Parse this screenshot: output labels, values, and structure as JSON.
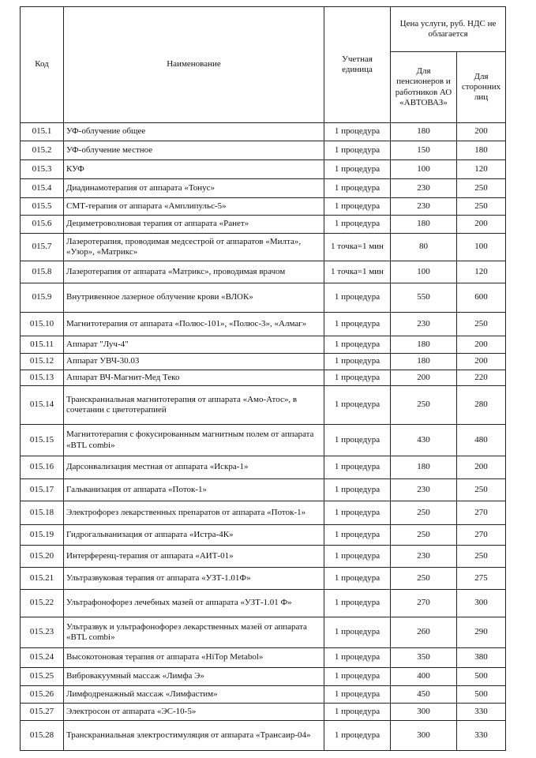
{
  "header": {
    "code": "Код",
    "name": "Наименование",
    "unit": "Учетная единица",
    "price": "Цена услуги, руб. НДС не облагается",
    "price_pensioners": "Для пенсионеров и работников АО «АВТОВАЗ»",
    "price_others": "Для сторонних лиц"
  },
  "table": {
    "rows": [
      [
        "015.1",
        "УФ-облучение общее",
        "1 процедура",
        180,
        200
      ],
      [
        "015.2",
        "УФ-облучение местное",
        "1 процедура",
        150,
        180
      ],
      [
        "015.3",
        "КУФ",
        "1 процедура",
        100,
        120
      ],
      [
        "015.4",
        "Диадинамотерапия от аппарата «Тонус»",
        "1 процедура",
        230,
        250
      ],
      [
        "015.5",
        "СМТ-терапия от аппарата «Амплипульс-5»",
        "1 процедура",
        230,
        250
      ],
      [
        "015.6",
        "Дециметроволновая терапия от аппарата «Ранет»",
        "1 процедура",
        180,
        200
      ],
      [
        "015.7",
        "Лазеротерапия, проводимая медсестрой от аппаратов «Милта», «Узор», «Матрикс»",
        "1 точка=1 мин",
        80,
        100
      ],
      [
        "015.8",
        "Лазеротерапия от аппарата «Матрикс», проводимая врачом",
        "1 точка=1 мин",
        100,
        120
      ],
      [
        "015.9",
        "Внутривенное лазерное облучение крови «ВЛОК»",
        "1 процедура",
        550,
        600
      ],
      [
        "015.10",
        "Магнитотерапия от аппарата «Полюс-101», «Полюс-3», «Алмаг»",
        "1 процедура",
        230,
        250
      ],
      [
        "015.11",
        "Аппарат \"Луч-4\"",
        "1 процедура",
        180,
        200
      ],
      [
        "015.12",
        "Аппарат УВЧ-30.03",
        "1 процедура",
        180,
        200
      ],
      [
        "015.13",
        "Аппарат ВЧ-Магнит-Мед Теко",
        "1 процедура",
        200,
        220
      ],
      [
        "015.14",
        "Транскраниальная магнитотерапия от аппарата «Амо-Атос», в сочетании с цветотерапией",
        "1 процедура",
        250,
        280
      ],
      [
        "015.15",
        "Магнитотерапия с фокусированным магнитным полем от аппарата «BTL combi»",
        "1 процедура",
        430,
        480
      ],
      [
        "015.16",
        "Дарсонвализация местная от аппарата «Искра-1»",
        "1 процедура",
        180,
        200
      ],
      [
        "015.17",
        "Гальванизация от аппарата «Поток-1»",
        "1 процедура",
        230,
        250
      ],
      [
        "015.18",
        "Электрофорез лекарственных препаратов от аппарата «Поток-1»",
        "1 процедура",
        250,
        270
      ],
      [
        "015.19",
        "Гидрогальванизация от аппарата «Истра-4К»",
        "1 процедура",
        250,
        270
      ],
      [
        "015.20",
        "Интерференц-терапия от аппарата «АИТ-01»",
        "1 процедура",
        230,
        250
      ],
      [
        "015.21",
        "Ультразвуковая терапия от аппарата «УЗТ-1.01Ф»",
        "1 процедура",
        250,
        275
      ],
      [
        "015.22",
        "Ультрафонофорез лечебных мазей от аппарата «УЗТ-1.01 Ф»",
        "1 процедура",
        270,
        300
      ],
      [
        "015.23",
        "Ультразвук и ультрафонофорез лекарственных мазей от аппарата «BTL combi»",
        "1 процедура",
        260,
        290
      ],
      [
        "015.24",
        "Высокотоновая терапия от аппарата «HiTop Metabol»",
        "1 процедура",
        350,
        380
      ],
      [
        "015.25",
        "Вибровакуумный массаж «Лимфа Э»",
        "1 процедура",
        400,
        500
      ],
      [
        "015.26",
        "Лимфодренажный массаж «Лимфастим»",
        "1 процедура",
        450,
        500
      ],
      [
        "015.27",
        "Электросон от аппарата «ЭС-10-5»",
        "1 процедура",
        300,
        330
      ],
      [
        "015.28",
        "Транскраниальная электростимуляция от аппарата «Трансаир-04»",
        "1 процедура",
        300,
        330
      ]
    ]
  }
}
